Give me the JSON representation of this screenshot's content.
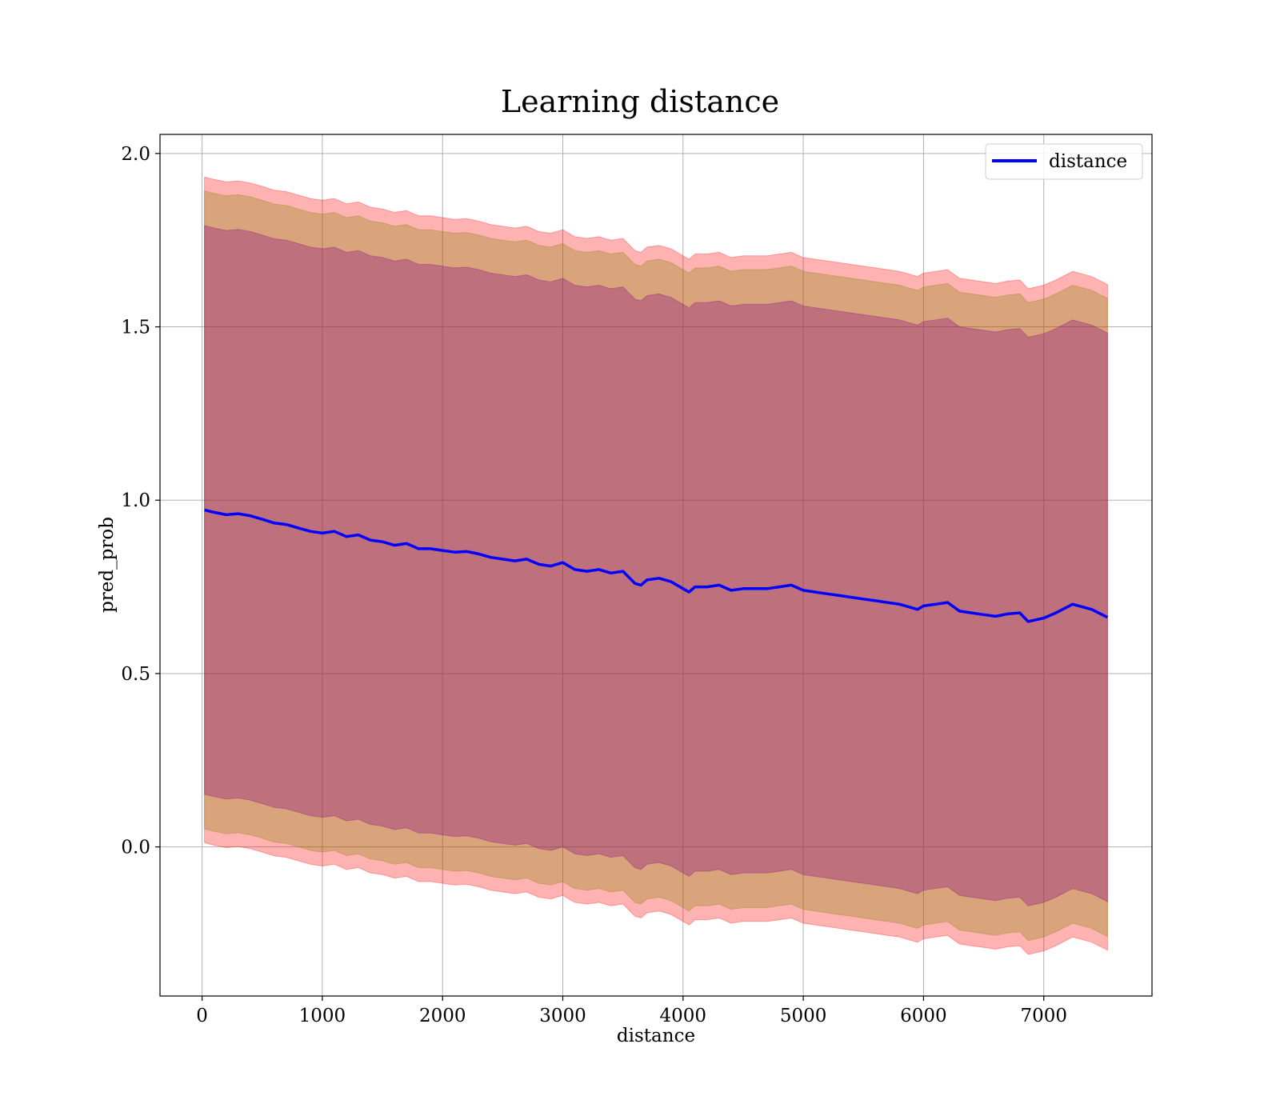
{
  "chart_data": {
    "type": "line",
    "title": "Learning distance",
    "xlabel": "distance",
    "ylabel": "pred_prob",
    "xlim": [
      -350,
      7900
    ],
    "ylim": [
      -0.43,
      2.055
    ],
    "xticks": [
      0,
      1000,
      2000,
      3000,
      4000,
      5000,
      6000,
      7000
    ],
    "yticks": [
      0.0,
      0.5,
      1.0,
      1.5,
      2.0
    ],
    "xtick_labels": [
      "0",
      "1000",
      "2000",
      "3000",
      "4000",
      "5000",
      "6000",
      "7000"
    ],
    "ytick_labels": [
      "0.0",
      "0.5",
      "1.0",
      "1.5",
      "2.0"
    ],
    "grid": true,
    "legend": {
      "position": "top-right",
      "entries": [
        "distance"
      ]
    },
    "colors": {
      "line": "#0000ff",
      "outer_band": "#ff0000",
      "middle_band": "#808000",
      "inner_band": "#800080",
      "grid": "#b0b0b0"
    },
    "series": [
      {
        "name": "distance",
        "x": [
          20,
          100,
          200,
          300,
          400,
          500,
          600,
          700,
          800,
          900,
          1000,
          1100,
          1200,
          1300,
          1400,
          1500,
          1600,
          1700,
          1800,
          1900,
          2000,
          2100,
          2200,
          2300,
          2400,
          2500,
          2600,
          2700,
          2800,
          2900,
          3000,
          3100,
          3200,
          3300,
          3400,
          3500,
          3600,
          3650,
          3700,
          3800,
          3900,
          4000,
          4050,
          4100,
          4200,
          4300,
          4400,
          4500,
          4600,
          4700,
          4800,
          4900,
          5000,
          5100,
          5200,
          5300,
          5400,
          5500,
          5600,
          5700,
          5800,
          5900,
          5950,
          6000,
          6100,
          6200,
          6300,
          6400,
          6500,
          6600,
          6700,
          6800,
          6870,
          7000,
          7100,
          7240,
          7400,
          7530
        ],
        "values": [
          0.972,
          0.965,
          0.958,
          0.961,
          0.955,
          0.945,
          0.934,
          0.93,
          0.92,
          0.91,
          0.905,
          0.91,
          0.895,
          0.9,
          0.885,
          0.88,
          0.87,
          0.875,
          0.86,
          0.86,
          0.855,
          0.85,
          0.852,
          0.845,
          0.835,
          0.83,
          0.825,
          0.83,
          0.815,
          0.81,
          0.82,
          0.8,
          0.795,
          0.8,
          0.79,
          0.795,
          0.76,
          0.755,
          0.77,
          0.775,
          0.765,
          0.745,
          0.735,
          0.75,
          0.75,
          0.755,
          0.74,
          0.745,
          0.745,
          0.745,
          0.75,
          0.755,
          0.74,
          0.735,
          0.73,
          0.725,
          0.72,
          0.715,
          0.71,
          0.705,
          0.7,
          0.69,
          0.685,
          0.695,
          0.7,
          0.705,
          0.68,
          0.675,
          0.67,
          0.665,
          0.672,
          0.675,
          0.65,
          0.66,
          0.675,
          0.7,
          0.685,
          0.662
        ],
        "band_outer": 0.96,
        "band_middle": 0.92,
        "band_inner": 0.82
      }
    ]
  }
}
